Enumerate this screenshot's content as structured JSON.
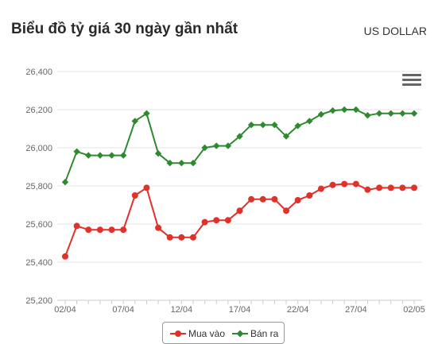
{
  "header": {
    "title": "Biểu đồ tỷ giá 30 ngày gần nhất",
    "currency": "US DOLLAR"
  },
  "menu_icon": "hamburger-menu-icon",
  "colors": {
    "buy": "#e0312a",
    "sell": "#2f8a2f",
    "grid": "#e6e6e6",
    "axis_text": "#666666"
  },
  "chart_data": {
    "type": "line",
    "title": "Biểu đồ tỷ giá 30 ngày gần nhất",
    "xlabel": "",
    "ylabel": "",
    "ylim": [
      25200,
      26400
    ],
    "yticks": [
      25200,
      25400,
      25600,
      25800,
      26000,
      26200,
      26400
    ],
    "ytick_labels": [
      "25,200",
      "25,400",
      "25,600",
      "25,800",
      "26,000",
      "26,200",
      "26,400"
    ],
    "x": [
      "02/04",
      "03/04",
      "04/04",
      "05/04",
      "06/04",
      "07/04",
      "08/04",
      "09/04",
      "10/04",
      "11/04",
      "12/04",
      "13/04",
      "14/04",
      "15/04",
      "16/04",
      "17/04",
      "18/04",
      "19/04",
      "20/04",
      "21/04",
      "22/04",
      "23/04",
      "24/04",
      "25/04",
      "26/04",
      "27/04",
      "28/04",
      "29/04",
      "30/04",
      "01/05",
      "02/05"
    ],
    "xtick_labels": [
      "02/04",
      "07/04",
      "12/04",
      "17/04",
      "22/04",
      "27/04",
      "02/05"
    ],
    "grid": true,
    "legend": "bottom-center",
    "series": [
      {
        "name": "Mua vào",
        "values": [
          25430,
          25590,
          25570,
          25570,
          25570,
          25570,
          25750,
          25790,
          25580,
          25530,
          25530,
          25530,
          25610,
          25620,
          25620,
          25670,
          25730,
          25730,
          25730,
          25670,
          25725,
          25750,
          25785,
          25805,
          25810,
          25810,
          25780,
          25790,
          25790,
          25790,
          25790
        ]
      },
      {
        "name": "Bán ra",
        "values": [
          25820,
          25980,
          25960,
          25960,
          25960,
          25960,
          26140,
          26180,
          25970,
          25920,
          25920,
          25920,
          26000,
          26010,
          26010,
          26060,
          26120,
          26120,
          26120,
          26060,
          26115,
          26140,
          26175,
          26195,
          26200,
          26200,
          26170,
          26180,
          26180,
          26180,
          26180
        ]
      }
    ]
  }
}
